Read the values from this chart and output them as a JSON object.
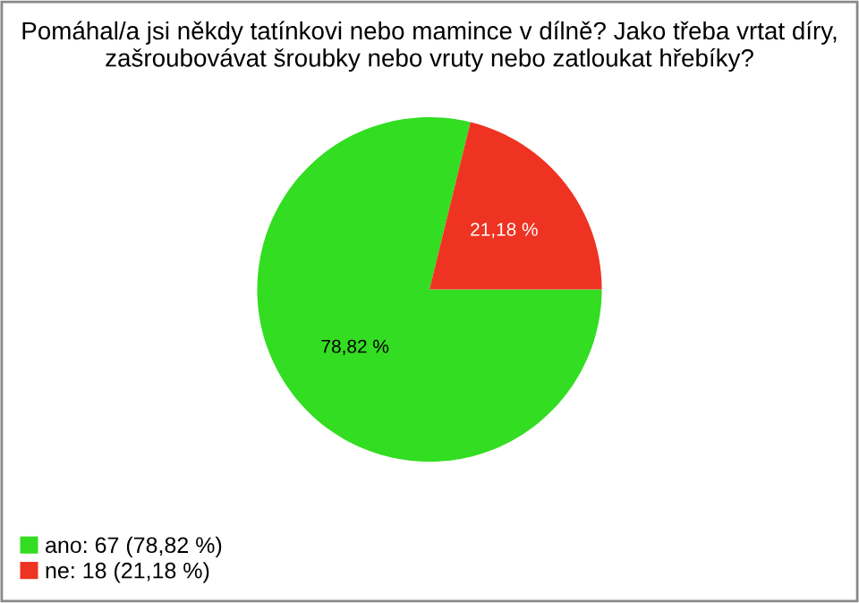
{
  "chart_data": {
    "type": "pie",
    "title": "Pomáhal/a jsi někdy tatínkovi nebo mamince v dílně? Jako třeba vrtat díry, zašroubovávat šroubky nebo vruty nebo zatloukat hřebíky?",
    "categories": [
      "ano: 67 (78,82 %)",
      "ne: 18 (21,18 %)"
    ],
    "values": [
      78.82,
      21.18
    ],
    "colors": [
      "#33dd22",
      "#ee3322"
    ],
    "value_labels": [
      "78,82 %",
      "21,18 %"
    ],
    "legend": "bottom left"
  }
}
